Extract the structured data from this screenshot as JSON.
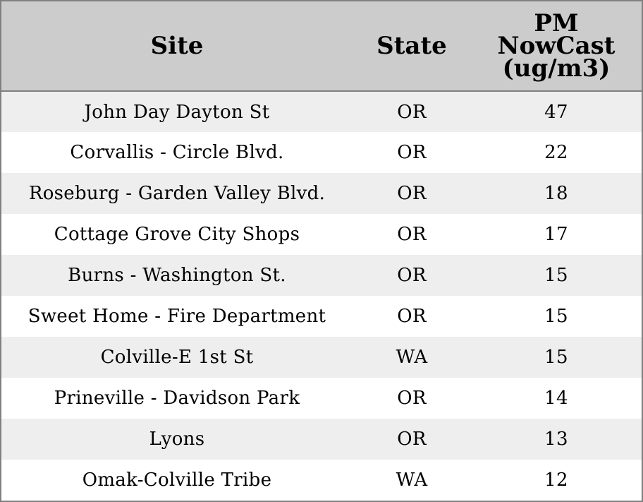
{
  "chart_data": {
    "type": "table",
    "columns": [
      {
        "key": "site",
        "label": "Site",
        "lines": [
          "Site"
        ]
      },
      {
        "key": "state",
        "label": "State",
        "lines": [
          "State"
        ]
      },
      {
        "key": "pm",
        "label": "PM NowCast (ug/m3)",
        "lines": [
          "PM",
          "NowCast",
          "(ug/m3)"
        ]
      }
    ],
    "rows": [
      {
        "site": "John Day Dayton St",
        "state": "OR",
        "pm": 47
      },
      {
        "site": "Corvallis - Circle Blvd.",
        "state": "OR",
        "pm": 22
      },
      {
        "site": "Roseburg - Garden Valley Blvd.",
        "state": "OR",
        "pm": 18
      },
      {
        "site": "Cottage Grove City Shops",
        "state": "OR",
        "pm": 17
      },
      {
        "site": "Burns - Washington St.",
        "state": "OR",
        "pm": 15
      },
      {
        "site": "Sweet Home - Fire Department",
        "state": "OR",
        "pm": 15
      },
      {
        "site": "Colville-E 1st St",
        "state": "WA",
        "pm": 15
      },
      {
        "site": "Prineville - Davidson Park",
        "state": "OR",
        "pm": 14
      },
      {
        "site": "Lyons",
        "state": "OR",
        "pm": 13
      },
      {
        "site": "Omak-Colville Tribe",
        "state": "WA",
        "pm": 12
      }
    ]
  },
  "colors": {
    "header_background": "#cccccc",
    "row_shaded": "#eeeeee",
    "row_plain": "#ffffff",
    "border": "#808080",
    "text": "#000000"
  }
}
